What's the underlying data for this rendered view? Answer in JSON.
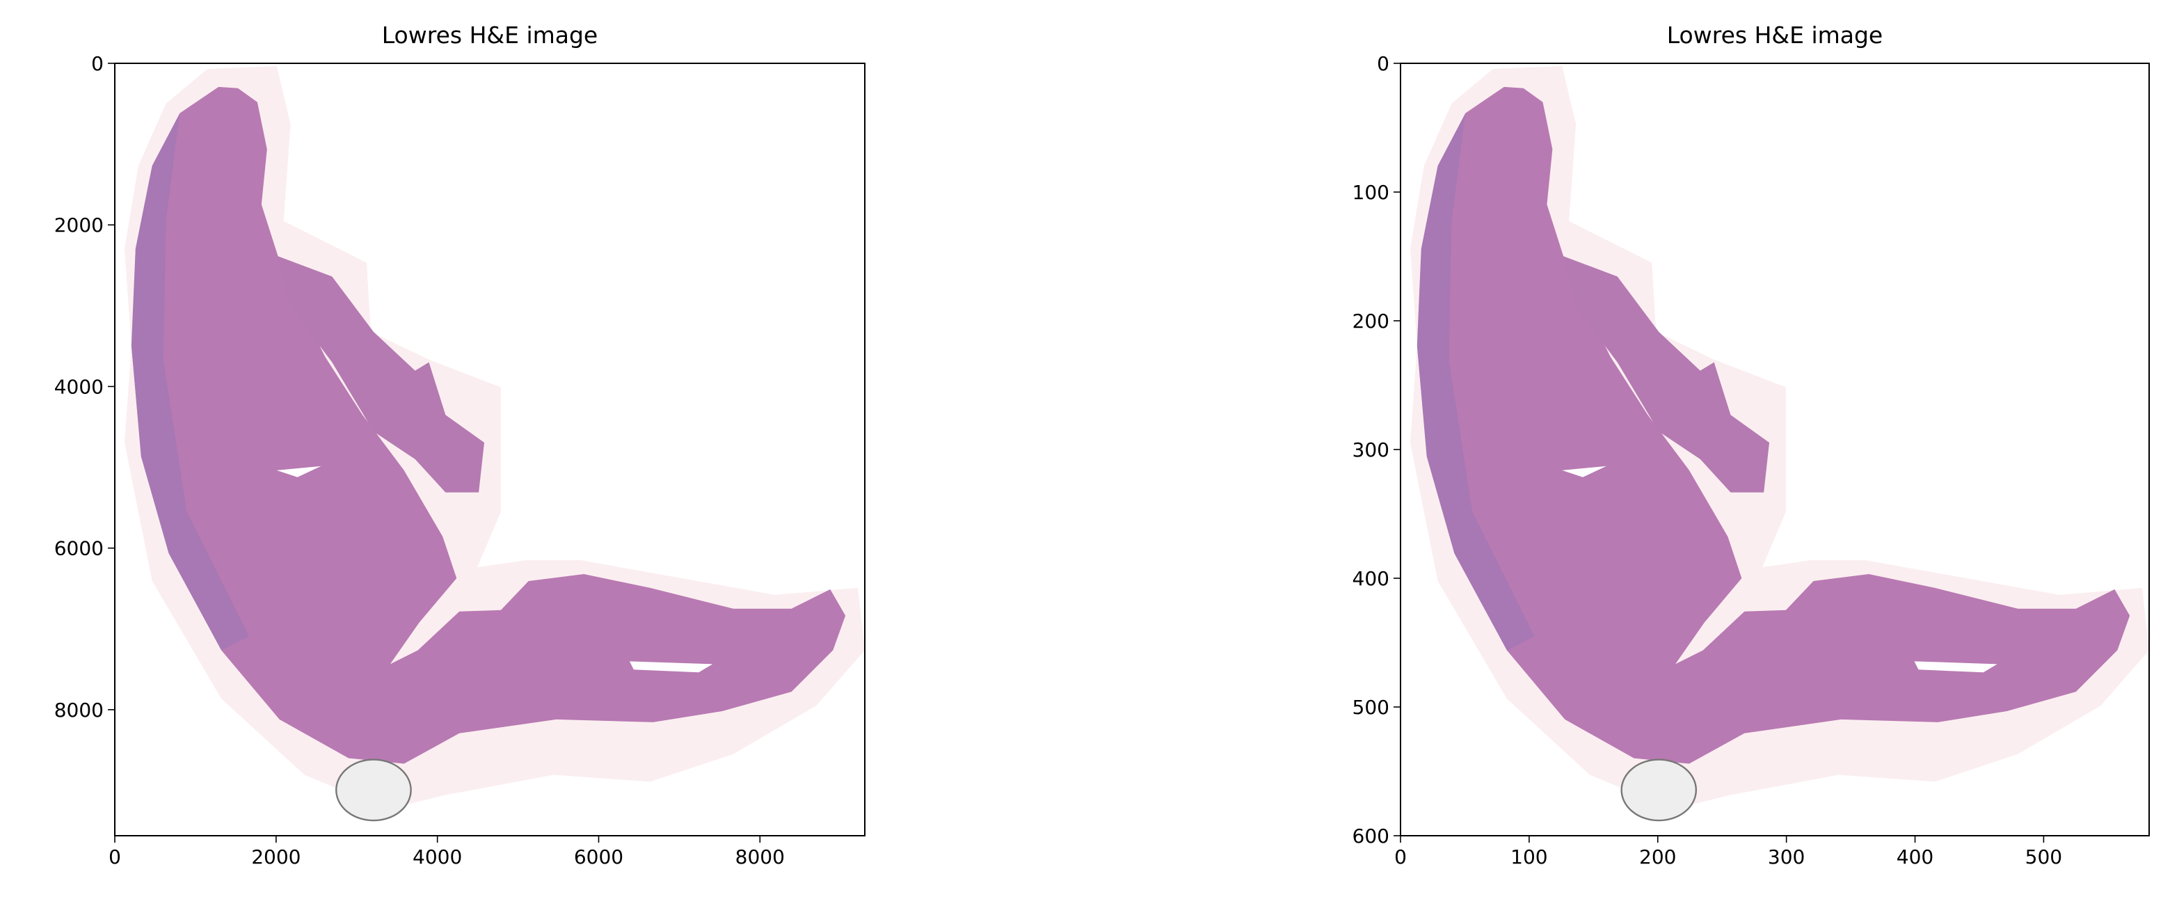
{
  "chart_data": [
    {
      "type": "image",
      "title": "Lowres H&E image",
      "xlim": [
        0,
        9300
      ],
      "ylim": [
        9560,
        0
      ],
      "xticks": [
        0,
        2000,
        4000,
        6000,
        8000
      ],
      "yticks": [
        0,
        2000,
        4000,
        6000,
        8000
      ]
    },
    {
      "type": "image",
      "title": "Lowres H&E image",
      "xlim": [
        0,
        582
      ],
      "ylim": [
        600,
        0
      ],
      "xticks": [
        0,
        100,
        200,
        300,
        400,
        500
      ],
      "yticks": [
        0,
        100,
        200,
        300,
        400,
        500,
        600
      ]
    }
  ]
}
